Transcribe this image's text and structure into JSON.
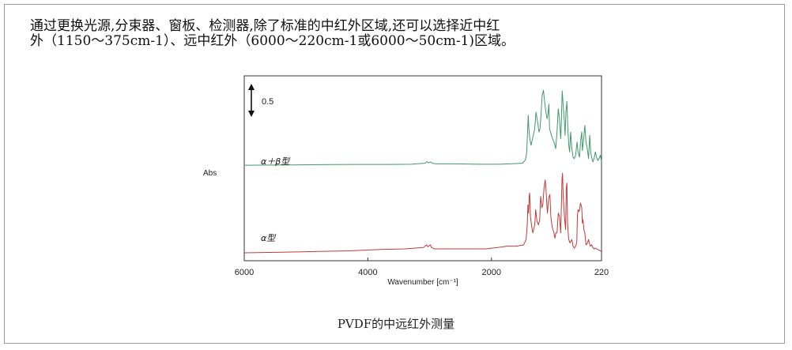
{
  "intro": {
    "line1": "通过更换光源,分束器、窗板、检测器,除了标准的中红外区域,还可以选择近中红",
    "line2": "外（1150～375cm-1）、远中红外（6000～220cm-1或6000～50cm-1)区域。"
  },
  "caption": "PVDF的中远红外测量",
  "chart_data": {
    "type": "line",
    "xlabel": "Wavenumber [cm⁻¹]",
    "ylabel": "Abs",
    "xlim": [
      6000,
      220
    ],
    "xticks": [
      6000,
      4000,
      2000,
      220
    ],
    "scale_bar": {
      "label": "0.5",
      "value": 0.5
    },
    "colors": {
      "alpha_beta": "#3f9a6a",
      "alpha": "#c23a3a"
    },
    "series": [
      {
        "name": "α＋β型",
        "offset": 1.32,
        "x": [
          6000,
          5200,
          4600,
          4200,
          3700,
          3300,
          3080,
          3040,
          3020,
          2985,
          2960,
          2900,
          2600,
          2200,
          1900,
          1700,
          1500,
          1450,
          1430,
          1405,
          1395,
          1380,
          1360,
          1340,
          1300,
          1280,
          1250,
          1232,
          1215,
          1200,
          1180,
          1160,
          1140,
          1120,
          1100,
          1085,
          1072,
          1060,
          1040,
          1020,
          990,
          975,
          960,
          940,
          920,
          900,
          880,
          870,
          855,
          840,
          820,
          810,
          795,
          780,
          765,
          750,
          735,
          720,
          700,
          680,
          660,
          640,
          615,
          600,
          575,
          560,
          540,
          530,
          510,
          490,
          470,
          450,
          430,
          420,
          410,
          395,
          380,
          360,
          340,
          320,
          300,
          280,
          260,
          240,
          220
        ],
        "y": [
          0.0,
          0.005,
          0.01,
          0.012,
          0.012,
          0.015,
          0.03,
          0.055,
          0.035,
          0.05,
          0.03,
          0.02,
          0.02,
          0.015,
          0.015,
          0.02,
          0.03,
          0.08,
          0.2,
          0.75,
          0.55,
          0.4,
          0.3,
          0.38,
          0.55,
          0.8,
          0.62,
          0.5,
          0.55,
          0.75,
          1.05,
          1.13,
          0.95,
          0.8,
          0.7,
          0.78,
          0.92,
          0.55,
          0.48,
          0.42,
          0.35,
          0.3,
          0.25,
          0.5,
          0.85,
          0.7,
          0.4,
          0.65,
          1.12,
          0.9,
          0.65,
          0.45,
          0.8,
          0.96,
          0.55,
          0.3,
          0.2,
          0.5,
          0.25,
          0.12,
          0.1,
          0.15,
          0.35,
          0.2,
          0.12,
          0.35,
          0.5,
          0.22,
          0.38,
          0.6,
          0.35,
          0.25,
          0.1,
          0.28,
          0.45,
          0.2,
          0.12,
          0.05,
          0.1,
          0.2,
          0.12,
          0.07,
          0.1,
          0.15,
          0.06
        ]
      },
      {
        "name": "α型",
        "offset": 0.0,
        "x": [
          6000,
          5400,
          4800,
          4300,
          3800,
          3400,
          3100,
          3050,
          3030,
          2990,
          2970,
          2920,
          2700,
          2400,
          2100,
          1900,
          1750,
          1600,
          1480,
          1440,
          1420,
          1410,
          1400,
          1390,
          1383,
          1370,
          1350,
          1330,
          1300,
          1285,
          1265,
          1240,
          1220,
          1205,
          1185,
          1170,
          1150,
          1130,
          1115,
          1105,
          1095,
          1075,
          1055,
          1040,
          1020,
          990,
          975,
          960,
          940,
          920,
          900,
          880,
          860,
          850,
          840,
          820,
          800,
          790,
          780,
          770,
          760,
          750,
          730,
          700,
          680,
          660,
          640,
          620,
          610,
          600,
          580,
          560,
          540,
          530,
          520,
          505,
          490,
          470,
          450,
          430,
          410,
          400,
          380,
          360,
          340,
          320,
          300,
          280,
          260,
          240,
          220
        ],
        "y": [
          0.0,
          0.01,
          0.02,
          0.03,
          0.05,
          0.06,
          0.08,
          0.12,
          0.09,
          0.12,
          0.08,
          0.06,
          0.06,
          0.06,
          0.06,
          0.08,
          0.1,
          0.1,
          0.12,
          0.2,
          0.45,
          0.72,
          0.6,
          0.85,
          0.9,
          0.55,
          0.4,
          0.3,
          0.42,
          0.65,
          0.48,
          0.42,
          0.5,
          0.85,
          0.68,
          0.72,
          0.98,
          1.1,
          0.92,
          0.72,
          0.6,
          0.82,
          0.88,
          0.55,
          0.4,
          0.3,
          0.22,
          0.3,
          0.3,
          0.6,
          0.55,
          0.3,
          1.1,
          1.2,
          0.85,
          0.55,
          0.35,
          0.98,
          1.05,
          0.45,
          0.3,
          0.2,
          0.15,
          0.2,
          0.1,
          0.07,
          0.1,
          0.15,
          0.55,
          0.65,
          0.62,
          0.75,
          0.68,
          0.45,
          0.5,
          0.35,
          0.3,
          0.12,
          0.14,
          0.2,
          0.13,
          0.1,
          0.12,
          0.08,
          0.06,
          0.07,
          0.06,
          0.05,
          0.04,
          0.03,
          0.02
        ]
      }
    ]
  }
}
